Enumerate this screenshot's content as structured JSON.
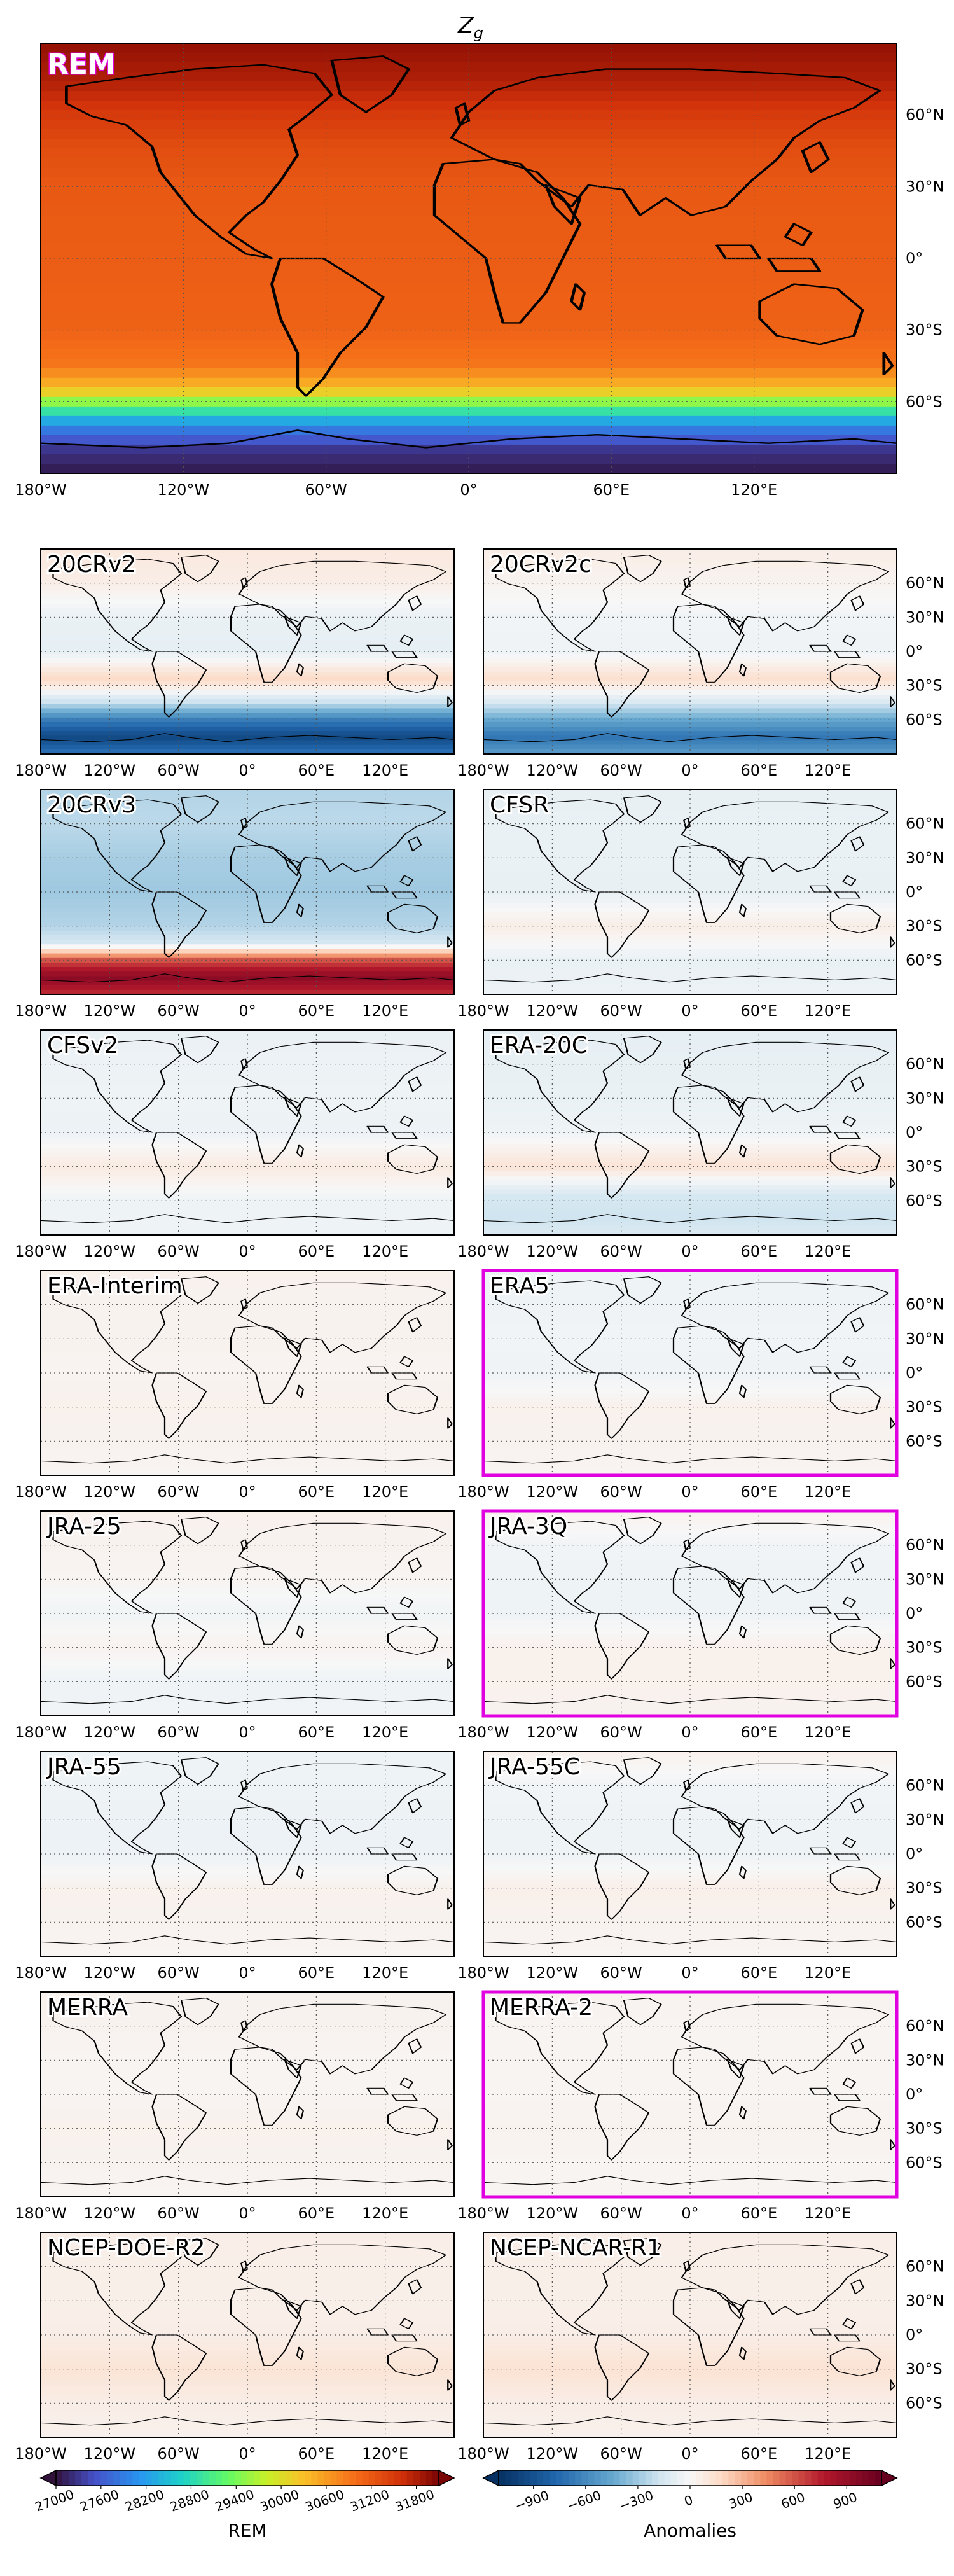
{
  "figure_title": "Z",
  "figure_title_sub": "g",
  "main_panel_label": "REM",
  "chart_data": {
    "type": "heatmap",
    "variable": "Z_g",
    "main_panel": {
      "label": "REM",
      "colormap": "jet-like",
      "colorbar_label": "REM",
      "colorbar_ticks": [
        "27000",
        "27600",
        "28200",
        "28800",
        "29400",
        "30000",
        "30600",
        "31200",
        "31800"
      ],
      "colorbar_range": [
        27000,
        32100
      ],
      "lat_profile": [
        {
          "lat": 90,
          "value": 31950
        },
        {
          "lat": 75,
          "value": 31800
        },
        {
          "lat": 60,
          "value": 31500
        },
        {
          "lat": 45,
          "value": 31300
        },
        {
          "lat": 30,
          "value": 31200
        },
        {
          "lat": 0,
          "value": 31150
        },
        {
          "lat": -30,
          "value": 31100
        },
        {
          "lat": -45,
          "value": 30900
        },
        {
          "lat": -55,
          "value": 30300
        },
        {
          "lat": -62,
          "value": 29200
        },
        {
          "lat": -70,
          "value": 28000
        },
        {
          "lat": -80,
          "value": 27300
        },
        {
          "lat": -90,
          "value": 27050
        }
      ]
    },
    "x_ticks": [
      "180°W",
      "120°W",
      "60°W",
      "0°",
      "60°E",
      "120°E"
    ],
    "y_ticks": [
      "60°N",
      "30°N",
      "0°",
      "30°S",
      "60°S"
    ],
    "anomaly_colorbar": {
      "label": "Anomalies",
      "ticks": [
        "−900",
        "−600",
        "−300",
        "0",
        "300",
        "600",
        "900"
      ],
      "range": [
        -1100,
        1100
      ]
    },
    "anomaly_panels": [
      {
        "label": "20CRv2",
        "highlight": false,
        "lat_profile": [
          {
            "lat": 90,
            "value": 90
          },
          {
            "lat": 60,
            "value": 60
          },
          {
            "lat": 30,
            "value": -60
          },
          {
            "lat": 0,
            "value": -80
          },
          {
            "lat": -25,
            "value": 180
          },
          {
            "lat": -45,
            "value": -200
          },
          {
            "lat": -60,
            "value": -650
          },
          {
            "lat": -75,
            "value": -950
          },
          {
            "lat": -90,
            "value": -700
          }
        ]
      },
      {
        "label": "20CRv2c",
        "highlight": false,
        "lat_profile": [
          {
            "lat": 90,
            "value": 60
          },
          {
            "lat": 60,
            "value": 30
          },
          {
            "lat": 30,
            "value": -30
          },
          {
            "lat": 0,
            "value": -40
          },
          {
            "lat": -25,
            "value": 150
          },
          {
            "lat": -45,
            "value": -150
          },
          {
            "lat": -60,
            "value": -450
          },
          {
            "lat": -75,
            "value": -700
          },
          {
            "lat": -90,
            "value": -500
          }
        ]
      },
      {
        "label": "20CRv3",
        "highlight": false,
        "lat_profile": [
          {
            "lat": 90,
            "value": -250
          },
          {
            "lat": 60,
            "value": -230
          },
          {
            "lat": 30,
            "value": -280
          },
          {
            "lat": 0,
            "value": -300
          },
          {
            "lat": -30,
            "value": -250
          },
          {
            "lat": -45,
            "value": -150
          },
          {
            "lat": -60,
            "value": 600
          },
          {
            "lat": -75,
            "value": 950
          },
          {
            "lat": -90,
            "value": 700
          }
        ]
      },
      {
        "label": "CFSR",
        "highlight": false,
        "lat_profile": [
          {
            "lat": 90,
            "value": -70
          },
          {
            "lat": 60,
            "value": -60
          },
          {
            "lat": 30,
            "value": -60
          },
          {
            "lat": 0,
            "value": -70
          },
          {
            "lat": -30,
            "value": 60
          },
          {
            "lat": -60,
            "value": -60
          },
          {
            "lat": -90,
            "value": -50
          }
        ]
      },
      {
        "label": "CFSv2",
        "highlight": false,
        "lat_profile": [
          {
            "lat": 90,
            "value": -60
          },
          {
            "lat": 60,
            "value": -50
          },
          {
            "lat": 30,
            "value": -40
          },
          {
            "lat": 0,
            "value": -50
          },
          {
            "lat": -30,
            "value": 80
          },
          {
            "lat": -60,
            "value": -40
          },
          {
            "lat": -90,
            "value": -40
          }
        ]
      },
      {
        "label": "ERA-20C",
        "highlight": false,
        "lat_profile": [
          {
            "lat": 90,
            "value": -80
          },
          {
            "lat": 60,
            "value": -70
          },
          {
            "lat": 30,
            "value": -60
          },
          {
            "lat": 0,
            "value": -40
          },
          {
            "lat": -30,
            "value": 120
          },
          {
            "lat": -55,
            "value": -150
          },
          {
            "lat": -75,
            "value": -180
          },
          {
            "lat": -90,
            "value": -120
          }
        ]
      },
      {
        "label": "ERA-Interim",
        "highlight": false,
        "lat_profile": [
          {
            "lat": 90,
            "value": 40
          },
          {
            "lat": 60,
            "value": 30
          },
          {
            "lat": 30,
            "value": 30
          },
          {
            "lat": 0,
            "value": 25
          },
          {
            "lat": -30,
            "value": 40
          },
          {
            "lat": -60,
            "value": 30
          },
          {
            "lat": -90,
            "value": 20
          }
        ]
      },
      {
        "label": "ERA5",
        "highlight": true,
        "lat_profile": [
          {
            "lat": 90,
            "value": -40
          },
          {
            "lat": 60,
            "value": -40
          },
          {
            "lat": 30,
            "value": -30
          },
          {
            "lat": 0,
            "value": -40
          },
          {
            "lat": -30,
            "value": 40
          },
          {
            "lat": -60,
            "value": 30
          },
          {
            "lat": -90,
            "value": 20
          }
        ]
      },
      {
        "label": "JRA-25",
        "highlight": false,
        "lat_profile": [
          {
            "lat": 90,
            "value": 40
          },
          {
            "lat": 60,
            "value": 30
          },
          {
            "lat": 30,
            "value": 20
          },
          {
            "lat": 0,
            "value": -30
          },
          {
            "lat": -30,
            "value": 30
          },
          {
            "lat": -60,
            "value": -40
          },
          {
            "lat": -90,
            "value": -30
          }
        ]
      },
      {
        "label": "JRA-3Q",
        "highlight": true,
        "lat_profile": [
          {
            "lat": 90,
            "value": 40
          },
          {
            "lat": 60,
            "value": -30
          },
          {
            "lat": 30,
            "value": -40
          },
          {
            "lat": 0,
            "value": -40
          },
          {
            "lat": -30,
            "value": 40
          },
          {
            "lat": -60,
            "value": 40
          },
          {
            "lat": -90,
            "value": 30
          }
        ]
      },
      {
        "label": "JRA-55",
        "highlight": false,
        "lat_profile": [
          {
            "lat": 90,
            "value": -40
          },
          {
            "lat": 60,
            "value": -40
          },
          {
            "lat": 30,
            "value": -50
          },
          {
            "lat": 0,
            "value": -50
          },
          {
            "lat": -30,
            "value": 40
          },
          {
            "lat": -60,
            "value": 30
          },
          {
            "lat": -90,
            "value": 20
          }
        ]
      },
      {
        "label": "JRA-55C",
        "highlight": false,
        "lat_profile": [
          {
            "lat": 90,
            "value": 40
          },
          {
            "lat": 60,
            "value": -30
          },
          {
            "lat": 30,
            "value": -40
          },
          {
            "lat": 0,
            "value": -40
          },
          {
            "lat": -30,
            "value": 50
          },
          {
            "lat": -60,
            "value": 30
          },
          {
            "lat": -90,
            "value": 20
          }
        ]
      },
      {
        "label": "MERRA",
        "highlight": false,
        "lat_profile": [
          {
            "lat": 90,
            "value": 30
          },
          {
            "lat": 60,
            "value": 30
          },
          {
            "lat": 30,
            "value": 20
          },
          {
            "lat": 0,
            "value": 20
          },
          {
            "lat": -30,
            "value": 40
          },
          {
            "lat": -60,
            "value": 30
          },
          {
            "lat": -90,
            "value": 20
          }
        ]
      },
      {
        "label": "MERRA-2",
        "highlight": true,
        "lat_profile": [
          {
            "lat": 90,
            "value": 30
          },
          {
            "lat": 60,
            "value": 20
          },
          {
            "lat": 30,
            "value": 20
          },
          {
            "lat": 0,
            "value": 20
          },
          {
            "lat": -30,
            "value": 30
          },
          {
            "lat": -60,
            "value": 20
          },
          {
            "lat": -90,
            "value": 20
          }
        ]
      },
      {
        "label": "NCEP-DOE-R2",
        "highlight": false,
        "lat_profile": [
          {
            "lat": 90,
            "value": 60
          },
          {
            "lat": 60,
            "value": 50
          },
          {
            "lat": 30,
            "value": 50
          },
          {
            "lat": 0,
            "value": 60
          },
          {
            "lat": -30,
            "value": 120
          },
          {
            "lat": -60,
            "value": 60
          },
          {
            "lat": -90,
            "value": 40
          }
        ]
      },
      {
        "label": "NCEP-NCAR-R1",
        "highlight": false,
        "lat_profile": [
          {
            "lat": 90,
            "value": 60
          },
          {
            "lat": 60,
            "value": 50
          },
          {
            "lat": 30,
            "value": 50
          },
          {
            "lat": 0,
            "value": 60
          },
          {
            "lat": -30,
            "value": 130
          },
          {
            "lat": -60,
            "value": 60
          },
          {
            "lat": -90,
            "value": 40
          }
        ]
      }
    ]
  },
  "colors": {
    "highlight_frame": "#e000e0"
  }
}
